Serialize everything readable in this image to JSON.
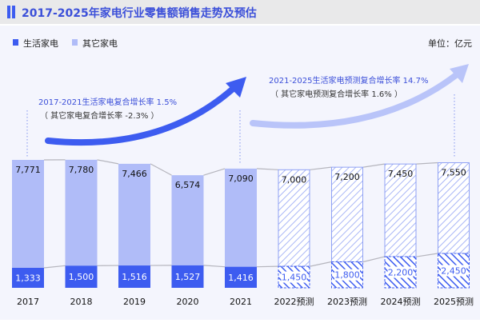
{
  "title": "2017-2025年家电行业零售额销售走势及预估",
  "unit_label": "单位：亿元",
  "colors": {
    "living": "#3d5cf0",
    "other": "#b0bcf8",
    "title_text": "#3b4fd9",
    "panel_bg": "#f4f5fd",
    "title_bg": "#e9e9ea"
  },
  "annotations": {
    "hist_main": "2017-2021生活家电复合增长率 1.5%",
    "hist_sub": "（ 其它家电复合增长率 -2.3% ）",
    "fc_main": "2021-2025生活家电预测复合增长率 14.7%",
    "fc_sub": "（ 其它家电预测复合增长率 1.6% ）"
  },
  "chart_data": {
    "type": "bar",
    "stacked": true,
    "title": "2017-2025年家电行业零售额销售走势及预估",
    "ylabel": "单位：亿元",
    "legend_position": "top-left",
    "grid": false,
    "categories": [
      "2017",
      "2018",
      "2019",
      "2020",
      "2021",
      "2022预测",
      "2023预测",
      "2024预测",
      "2025预测"
    ],
    "forecast": [
      false,
      false,
      false,
      false,
      false,
      true,
      true,
      true,
      true
    ],
    "series": [
      {
        "name": "生活家电",
        "values": [
          1333,
          1500,
          1516,
          1527,
          1416,
          1450,
          1800,
          2200,
          2450
        ],
        "labels": [
          "1,333",
          "1,500",
          "1,516",
          "1,527",
          "1,416",
          "1,450",
          "1,800",
          "2,200",
          "2,450"
        ]
      },
      {
        "name": "其它家电",
        "values": [
          7771,
          7780,
          7466,
          6574,
          7090,
          7000,
          7200,
          7450,
          7550
        ],
        "labels": [
          "7,771",
          "7,780",
          "7,466",
          "6,574",
          "7,090",
          "7,000",
          "7,200",
          "7,450",
          "7,550"
        ]
      }
    ]
  }
}
